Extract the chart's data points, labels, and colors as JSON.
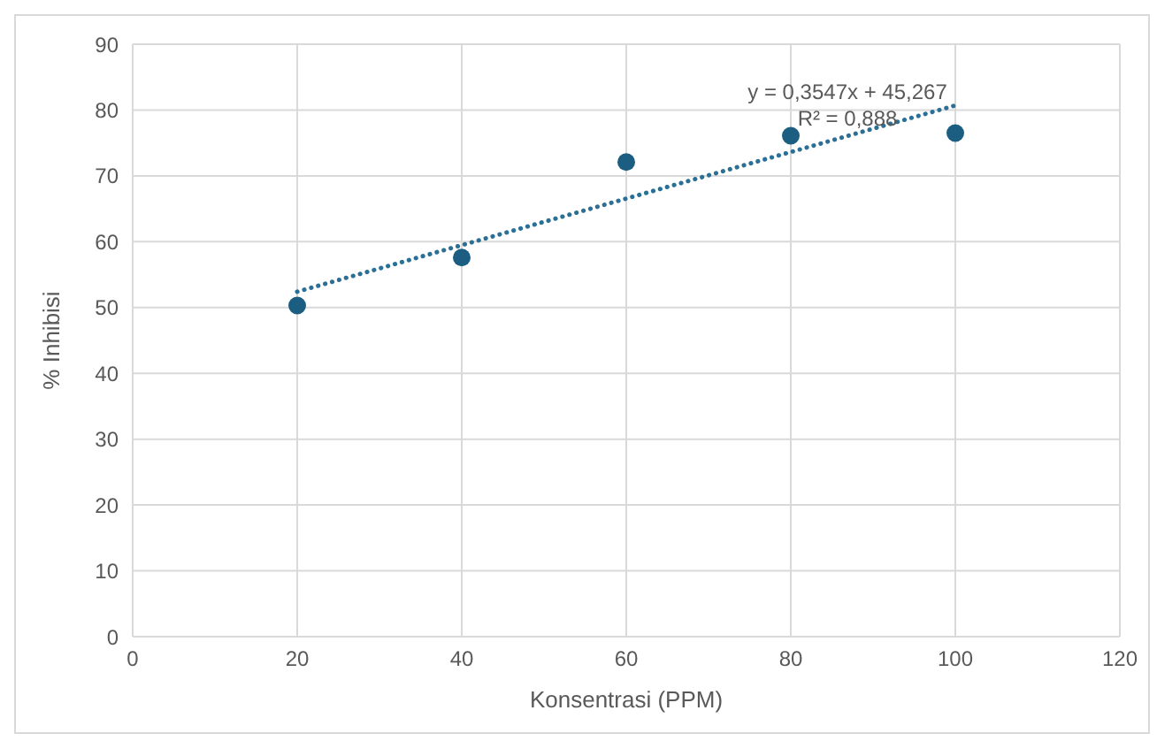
{
  "chart_data": {
    "type": "scatter",
    "xlabel": "Konsentrasi (PPM)",
    "ylabel": "% Inhibisi",
    "x": [
      20,
      40,
      60,
      80,
      100
    ],
    "series": [
      {
        "color": "#1b5e82",
        "values": [
          50.3,
          57.6,
          72.1,
          76.1,
          76.5
        ],
        "marker": "circle"
      },
      {
        "type": "line",
        "color": "#2a6f96",
        "x": [
          20,
          100
        ],
        "values": [
          52.4,
          80.7
        ],
        "line_style": "dotted",
        "marker": "none"
      }
    ],
    "annotations": [
      "y = 0,3547x + 45,267",
      "R² = 0,888"
    ],
    "xlim": [
      0,
      120
    ],
    "xticks": [
      0,
      20,
      40,
      60,
      80,
      100,
      120
    ],
    "ylim": [
      0,
      90
    ],
    "yticks": [
      0,
      10,
      20,
      30,
      40,
      50,
      60,
      70,
      80,
      90
    ],
    "grid": true
  }
}
